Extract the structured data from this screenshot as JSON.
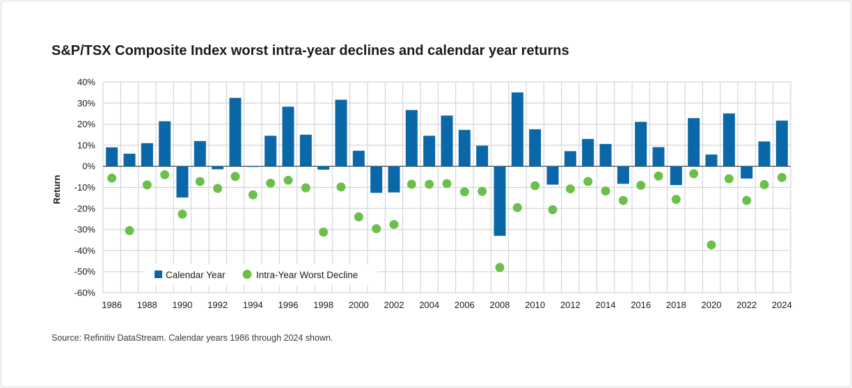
{
  "title": "S&P/TSX Composite Index worst intra-year declines and calendar year returns",
  "source": "Source: Refinitiv DataStream. Calendar years 1986 through 2024 shown.",
  "chart_data": {
    "type": "bar",
    "title": "S&P/TSX Composite Index worst intra-year declines and calendar year returns",
    "ylabel": "Return",
    "xlabel": "",
    "ylim": [
      -60,
      40
    ],
    "y_ticks": [
      "40%",
      "30%",
      "20%",
      "10%",
      "0%",
      "-10%",
      "-20%",
      "-30%",
      "-40%",
      "-50%",
      "-60%"
    ],
    "y_tick_values": [
      40,
      30,
      20,
      10,
      0,
      -10,
      -20,
      -30,
      -40,
      -50,
      -60
    ],
    "x_tick_labels": [
      "1986",
      "1988",
      "1990",
      "1992",
      "1994",
      "1996",
      "1998",
      "2000",
      "2002",
      "2004",
      "2006",
      "2008",
      "2010",
      "2012",
      "2014",
      "2016",
      "2018",
      "2020",
      "2022",
      "2024"
    ],
    "grid": true,
    "legend_position": "bottom-left",
    "categories": [
      1986,
      1987,
      1988,
      1989,
      1990,
      1991,
      1992,
      1993,
      1994,
      1995,
      1996,
      1997,
      1998,
      1999,
      2000,
      2001,
      2002,
      2003,
      2004,
      2005,
      2006,
      2007,
      2008,
      2009,
      2010,
      2011,
      2012,
      2013,
      2014,
      2015,
      2016,
      2017,
      2018,
      2019,
      2020,
      2021,
      2022,
      2023,
      2024
    ],
    "series": [
      {
        "name": "Calendar Year",
        "kind": "bar",
        "color": "#0a68a8",
        "values": [
          9,
          6,
          11,
          21.4,
          -14.8,
          12,
          -1.4,
          32.5,
          -0.2,
          14.5,
          28.3,
          15,
          -1.6,
          31.6,
          7.4,
          -12.6,
          -12.4,
          26.7,
          14.5,
          24.1,
          17.3,
          9.8,
          -33,
          35.1,
          17.6,
          -8.7,
          7.2,
          13,
          10.6,
          -8.3,
          21.1,
          9.1,
          -8.9,
          22.9,
          5.6,
          25.1,
          -5.8,
          11.8,
          21.7
        ]
      },
      {
        "name": "Intra-Year Worst Decline",
        "kind": "scatter",
        "color": "#6cc04a",
        "values": [
          -5.6,
          -30.5,
          -8.8,
          -4,
          -22.7,
          -7.2,
          -10.5,
          -4.8,
          -13.5,
          -8,
          -6.6,
          -10.2,
          -31.2,
          -9.8,
          -24,
          -29.6,
          -27.6,
          -8.5,
          -8.5,
          -8.2,
          -12.1,
          -11.9,
          -48,
          -19.6,
          -9.2,
          -20.6,
          -10.7,
          -7.2,
          -11.7,
          -16.2,
          -9,
          -4.6,
          -15.7,
          -3.5,
          -37.3,
          -5.9,
          -16.2,
          -8.7,
          -5.3
        ]
      }
    ]
  },
  "legend": [
    {
      "label": "Calendar Year",
      "color": "#0a68a8",
      "marker": "square"
    },
    {
      "label": "Intra-Year Worst Decline",
      "color": "#6cc04a",
      "marker": "circle"
    }
  ]
}
